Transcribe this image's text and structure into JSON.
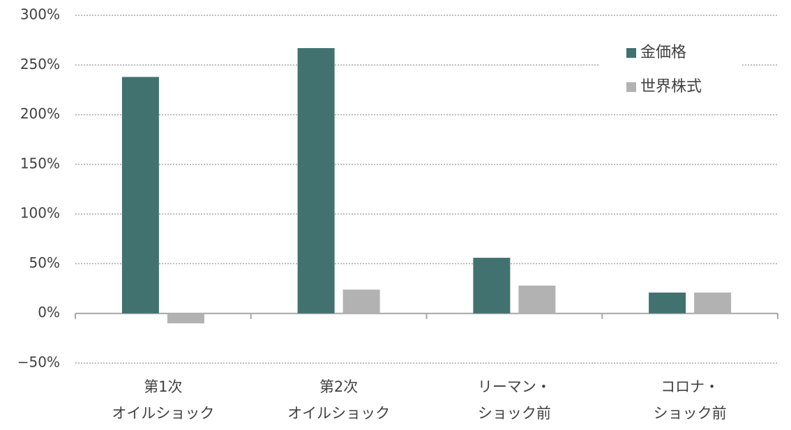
{
  "chart_data": {
    "type": "bar",
    "categories": [
      [
        "第1次",
        "オイルショック"
      ],
      [
        "第2次",
        "オイルショック"
      ],
      [
        "リーマン・",
        "ショック前"
      ],
      [
        "コロナ・",
        "ショック前"
      ]
    ],
    "series": [
      {
        "name": "金価格",
        "color": "#41726f",
        "values": [
          238,
          267,
          56,
          21
        ]
      },
      {
        "name": "世界株式",
        "color": "#b2b2b2",
        "values": [
          -10,
          24,
          28,
          21
        ]
      }
    ],
    "ylim": [
      -50,
      300
    ],
    "yticks": [
      {
        "value": -50,
        "label": "−50%"
      },
      {
        "value": 0,
        "label": "0%"
      },
      {
        "value": 50,
        "label": "50%"
      },
      {
        "value": 100,
        "label": "100%"
      },
      {
        "value": 150,
        "label": "150%"
      },
      {
        "value": 200,
        "label": "200%"
      },
      {
        "value": 250,
        "label": "250%"
      },
      {
        "value": 300,
        "label": "300%"
      }
    ],
    "grid": true,
    "legend": "upper right"
  }
}
